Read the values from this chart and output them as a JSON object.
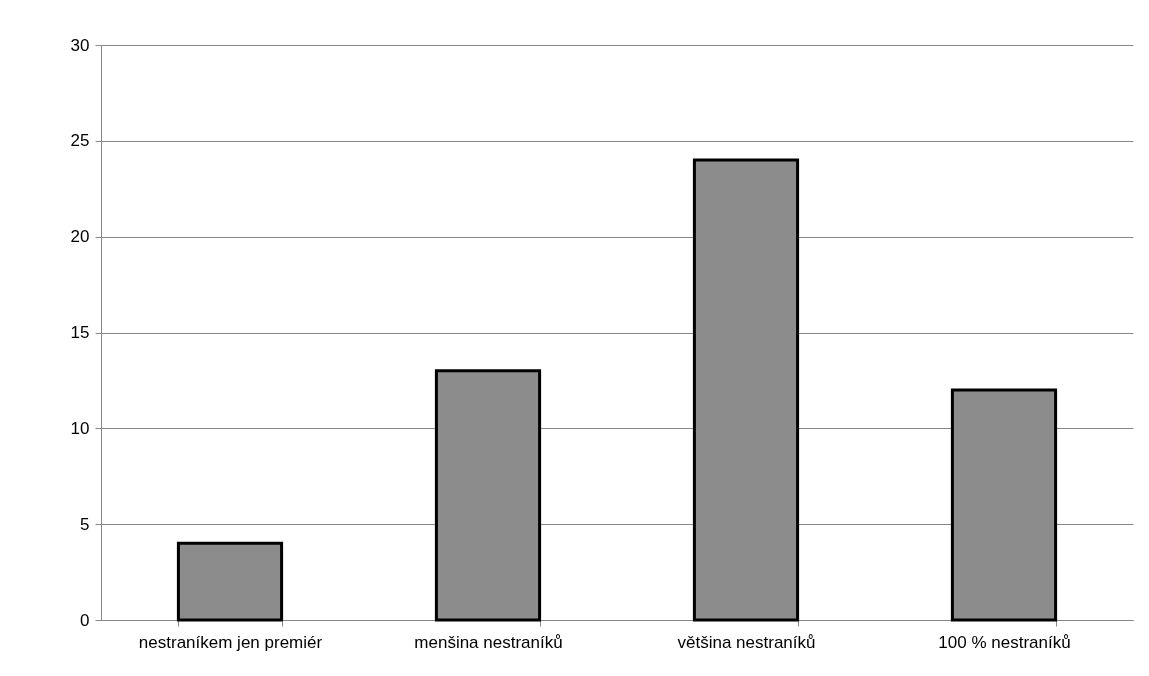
{
  "chart_data": {
    "type": "bar",
    "categories": [
      "nestraníkem jen premiér",
      "menšina nestraníků",
      "většina nestraníků",
      "100 % nestraníků"
    ],
    "values": [
      4,
      13,
      24,
      12
    ],
    "color": "#8c8c8c",
    "ylim": [
      0,
      30
    ],
    "yticks": [
      0,
      5,
      10,
      15,
      20,
      25,
      30
    ],
    "grid": "y"
  }
}
